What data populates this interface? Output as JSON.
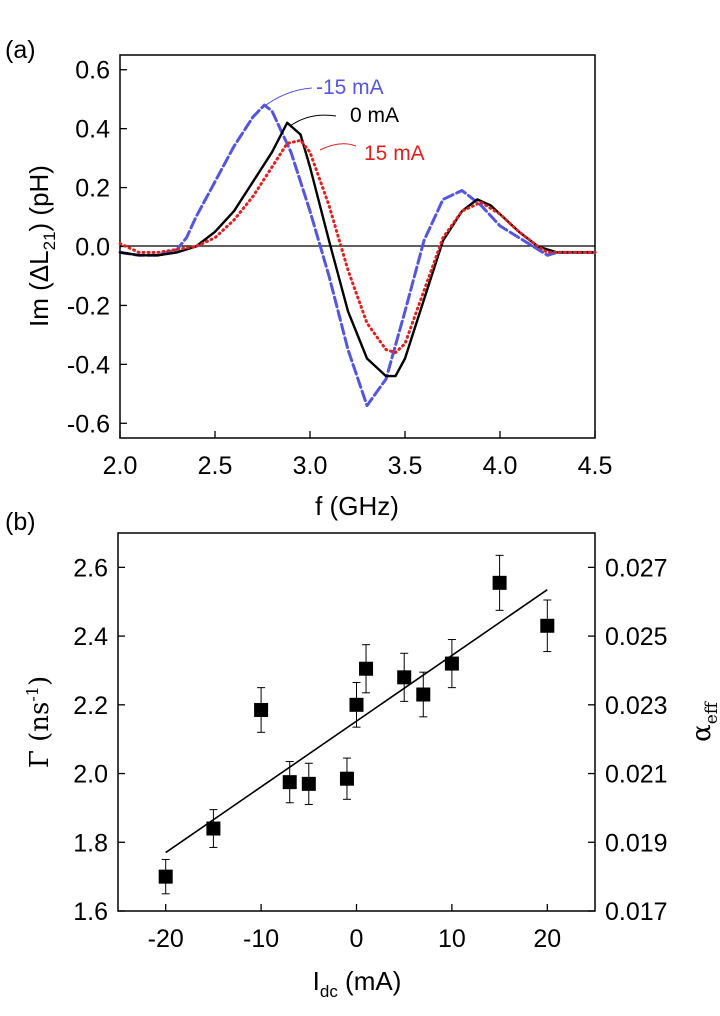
{
  "chart_data": [
    {
      "panel": "(a)",
      "type": "line",
      "xlabel": "f (GHz)",
      "ylabel": "Im (ΔL21) (pH)",
      "xlim": [
        2.0,
        4.5
      ],
      "ylim": [
        -0.65,
        0.65
      ],
      "xticks": [
        "2.0",
        "2.5",
        "3.0",
        "3.5",
        "4.0",
        "4.5"
      ],
      "yticks": [
        "-0.6",
        "-0.4",
        "-0.2",
        "0.0",
        "0.2",
        "0.4",
        "0.6"
      ],
      "zero_line": true,
      "series": [
        {
          "name": "-15 mA",
          "color": "#5555dd",
          "style": "dashed",
          "x": [
            2.0,
            2.1,
            2.2,
            2.3,
            2.35,
            2.4,
            2.5,
            2.6,
            2.7,
            2.76,
            2.8,
            2.9,
            3.0,
            3.1,
            3.2,
            3.3,
            3.4,
            3.5,
            3.6,
            3.7,
            3.8,
            3.9,
            4.0,
            4.1,
            4.2,
            4.25,
            4.3,
            4.4,
            4.5
          ],
          "y": [
            -0.02,
            -0.03,
            -0.03,
            -0.01,
            0.03,
            0.1,
            0.22,
            0.34,
            0.44,
            0.48,
            0.46,
            0.32,
            0.12,
            -0.1,
            -0.35,
            -0.54,
            -0.45,
            -0.22,
            0.02,
            0.16,
            0.19,
            0.14,
            0.07,
            0.03,
            -0.01,
            -0.03,
            -0.02,
            -0.02,
            -0.02
          ]
        },
        {
          "name": "0 mA",
          "color": "#000000",
          "style": "solid",
          "x": [
            2.0,
            2.1,
            2.2,
            2.3,
            2.4,
            2.5,
            2.6,
            2.7,
            2.8,
            2.88,
            2.95,
            3.0,
            3.1,
            3.2,
            3.3,
            3.4,
            3.45,
            3.5,
            3.6,
            3.7,
            3.8,
            3.88,
            3.95,
            4.0,
            4.1,
            4.2,
            4.3,
            4.4,
            4.5
          ],
          "y": [
            -0.02,
            -0.03,
            -0.03,
            -0.02,
            0.0,
            0.05,
            0.12,
            0.22,
            0.32,
            0.42,
            0.38,
            0.27,
            0.02,
            -0.22,
            -0.38,
            -0.44,
            -0.44,
            -0.38,
            -0.18,
            0.02,
            0.12,
            0.16,
            0.14,
            0.11,
            0.05,
            0.0,
            -0.02,
            -0.02,
            -0.02
          ]
        },
        {
          "name": "15 mA",
          "color": "#dd2222",
          "style": "dotted",
          "x": [
            2.0,
            2.1,
            2.2,
            2.3,
            2.4,
            2.5,
            2.6,
            2.7,
            2.8,
            2.88,
            2.95,
            3.0,
            3.1,
            3.2,
            3.3,
            3.4,
            3.45,
            3.5,
            3.6,
            3.7,
            3.8,
            3.9,
            4.0,
            4.1,
            4.2,
            4.25,
            4.3,
            4.4,
            4.5
          ],
          "y": [
            0.01,
            -0.02,
            -0.02,
            -0.01,
            0.0,
            0.03,
            0.09,
            0.17,
            0.27,
            0.35,
            0.36,
            0.32,
            0.14,
            -0.08,
            -0.26,
            -0.35,
            -0.36,
            -0.33,
            -0.15,
            0.03,
            0.12,
            0.15,
            0.11,
            0.05,
            0.0,
            -0.02,
            -0.02,
            -0.02,
            -0.02
          ]
        }
      ]
    },
    {
      "panel": "(b)",
      "type": "scatter",
      "xlabel": "I",
      "xlabel_sub": "dc",
      "xlabel_unit": " (mA)",
      "ylabel": "Γ (ns",
      "ylabel_sup": "-1",
      "ylabel_end": ")",
      "y2label": "α",
      "y2label_sub": "eff",
      "xlim": [
        -25,
        25
      ],
      "ylim": [
        1.6,
        2.7
      ],
      "xticks": [
        "-20",
        "-10",
        "0",
        "10",
        "20"
      ],
      "yticks": [
        "1.6",
        "1.8",
        "2.0",
        "2.2",
        "2.4",
        "2.6"
      ],
      "y2ticks": [
        "0.017",
        "0.019",
        "0.021",
        "0.023",
        "0.025",
        "0.027"
      ],
      "points": {
        "x": [
          -20,
          -15,
          -10,
          -7,
          -5,
          -1,
          0,
          1,
          5,
          7,
          10,
          15,
          20
        ],
        "y": [
          1.7,
          1.84,
          2.185,
          1.975,
          1.97,
          1.985,
          2.2,
          2.305,
          2.28,
          2.23,
          2.32,
          2.555,
          2.43
        ],
        "err": [
          0.05,
          0.055,
          0.065,
          0.06,
          0.06,
          0.06,
          0.065,
          0.07,
          0.07,
          0.065,
          0.07,
          0.08,
          0.075
        ]
      },
      "fit": {
        "x": [
          -20,
          20
        ],
        "y": [
          1.77,
          2.535
        ]
      }
    }
  ]
}
